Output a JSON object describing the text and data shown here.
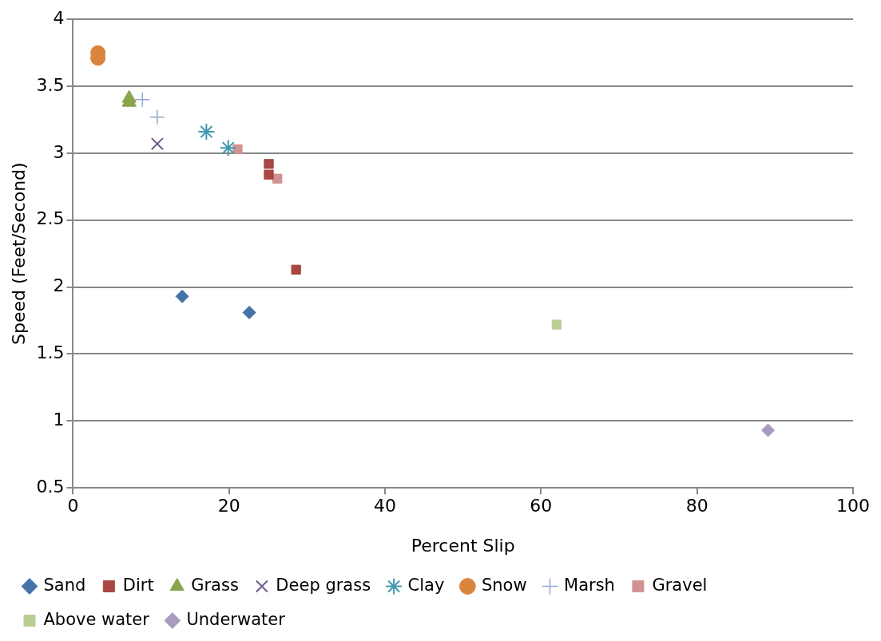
{
  "chart_data": {
    "type": "scatter",
    "xlabel": "Percent Slip",
    "ylabel": "Speed (Feet/Second)",
    "xlim": [
      0,
      100
    ],
    "xticks": [
      0,
      20,
      40,
      60,
      80,
      100
    ],
    "ylim": [
      0.5,
      4
    ],
    "yticks": [
      0.5,
      1,
      1.5,
      2,
      2.5,
      3,
      3.5,
      4
    ],
    "grid": "y",
    "legend": "bottom",
    "series": [
      {
        "name": "Sand",
        "color": "#4572a7",
        "marker": "diamond",
        "x": [
          14.0,
          22.6
        ],
        "values": [
          1.93,
          1.81
        ]
      },
      {
        "name": "Dirt",
        "color": "#aa4643",
        "marker": "square",
        "x": [
          25.1,
          25.1,
          28.6
        ],
        "values": [
          2.92,
          2.84,
          2.13
        ]
      },
      {
        "name": "Grass",
        "color": "#89a54e",
        "marker": "triangle",
        "x": [
          7.2,
          7.2
        ],
        "values": [
          3.41,
          3.38
        ]
      },
      {
        "name": "Deep grass",
        "color": "#71588f",
        "marker": "x",
        "x": [
          10.8
        ],
        "values": [
          3.07
        ]
      },
      {
        "name": "Clay",
        "color": "#4198af",
        "marker": "cross",
        "x": [
          17.1,
          19.9
        ],
        "values": [
          3.16,
          3.04
        ]
      },
      {
        "name": "Snow",
        "color": "#db843d",
        "marker": "circle",
        "x": [
          3.2,
          3.2
        ],
        "values": [
          3.75,
          3.71
        ]
      },
      {
        "name": "Marsh",
        "color": "#93a9cf",
        "marker": "plus",
        "x": [
          8.9,
          10.8
        ],
        "values": [
          3.4,
          3.27
        ]
      },
      {
        "name": "Gravel",
        "color": "#d19392",
        "marker": "square",
        "x": [
          21.1,
          26.2
        ],
        "values": [
          3.03,
          2.81
        ]
      },
      {
        "name": "Above water",
        "color": "#b9cd96",
        "marker": "square",
        "x": [
          62.0
        ],
        "values": [
          1.72
        ]
      },
      {
        "name": "Underwater",
        "color": "#a99bbd",
        "marker": "diamond",
        "x": [
          89.1
        ],
        "values": [
          0.93
        ]
      }
    ]
  }
}
